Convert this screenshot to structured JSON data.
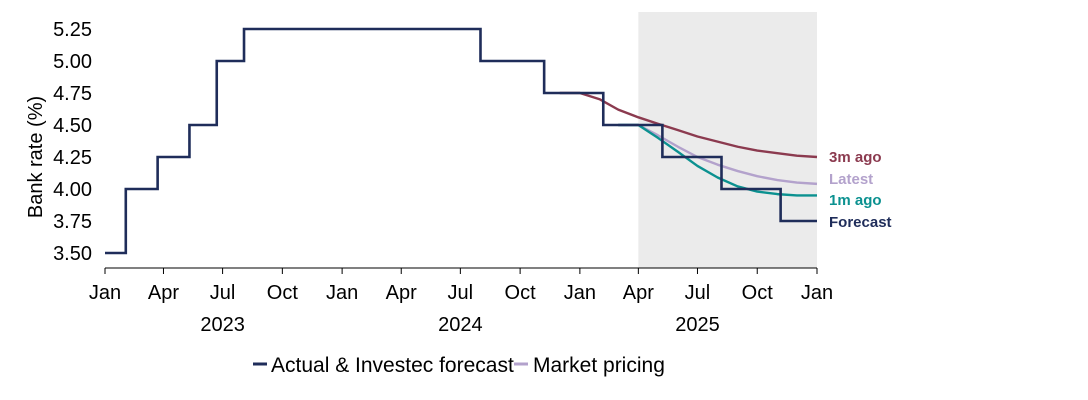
{
  "chart_data": {
    "type": "line",
    "ylabel": "Bank rate (%)",
    "xlabel": "",
    "title": "",
    "x_range": [
      "2023-01-01",
      "2026-01-01"
    ],
    "ylim": [
      3.5,
      5.25
    ],
    "y_ticks": [
      "3.50",
      "3.75",
      "4.00",
      "4.25",
      "4.50",
      "4.75",
      "5.00",
      "5.25"
    ],
    "x_ticks": [
      {
        "date": "2023-01-01",
        "label": "Jan"
      },
      {
        "date": "2023-04-01",
        "label": "Apr"
      },
      {
        "date": "2023-07-01",
        "label": "Jul"
      },
      {
        "date": "2023-10-01",
        "label": "Oct"
      },
      {
        "date": "2024-01-01",
        "label": "Jan"
      },
      {
        "date": "2024-04-01",
        "label": "Apr"
      },
      {
        "date": "2024-07-01",
        "label": "Jul"
      },
      {
        "date": "2024-10-01",
        "label": "Oct"
      },
      {
        "date": "2025-01-01",
        "label": "Jan"
      },
      {
        "date": "2025-04-01",
        "label": "Apr"
      },
      {
        "date": "2025-07-01",
        "label": "Jul"
      },
      {
        "date": "2025-10-01",
        "label": "Oct"
      },
      {
        "date": "2026-01-01",
        "label": "Jan"
      }
    ],
    "year_labels": [
      {
        "date": "2023-07-01",
        "label": "2023"
      },
      {
        "date": "2024-07-01",
        "label": "2024"
      },
      {
        "date": "2025-07-01",
        "label": "2025"
      }
    ],
    "shaded_region": {
      "from": "2025-04-01",
      "to": "2026-01-01"
    },
    "grid": false,
    "legend_position": "bottom",
    "legend": [
      {
        "label": "Actual & Investec forecast",
        "color": "#1f2d5a"
      },
      {
        "label": "Market pricing",
        "color": "#b3a2cc"
      }
    ],
    "series": [
      {
        "end_label": "Forecast",
        "color": "#1f2d5a",
        "step": true,
        "points": [
          [
            "2023-01-01",
            3.5
          ],
          [
            "2023-02-02",
            4.0
          ],
          [
            "2023-03-23",
            4.25
          ],
          [
            "2023-05-11",
            4.5
          ],
          [
            "2023-06-22",
            5.0
          ],
          [
            "2023-08-03",
            5.25
          ],
          [
            "2024-08-01",
            5.0
          ],
          [
            "2024-11-07",
            4.75
          ],
          [
            "2025-02-06",
            4.5
          ],
          [
            "2025-05-08",
            4.25
          ],
          [
            "2025-08-07",
            4.0
          ],
          [
            "2025-11-06",
            3.75
          ],
          [
            "2026-01-01",
            3.75
          ]
        ]
      },
      {
        "end_label": "3m ago",
        "color": "#8b3a4f",
        "step": false,
        "points": [
          [
            "2024-12-01",
            4.75
          ],
          [
            "2025-01-01",
            4.75
          ],
          [
            "2025-02-01",
            4.7
          ],
          [
            "2025-03-01",
            4.62
          ],
          [
            "2025-04-01",
            4.56
          ],
          [
            "2025-05-01",
            4.51
          ],
          [
            "2025-06-01",
            4.46
          ],
          [
            "2025-07-01",
            4.41
          ],
          [
            "2025-08-01",
            4.37
          ],
          [
            "2025-09-01",
            4.33
          ],
          [
            "2025-10-01",
            4.3
          ],
          [
            "2025-11-01",
            4.28
          ],
          [
            "2025-12-01",
            4.26
          ],
          [
            "2026-01-01",
            4.25
          ]
        ]
      },
      {
        "end_label": "Latest",
        "color": "#b3a2cc",
        "step": false,
        "points": [
          [
            "2025-03-01",
            4.5
          ],
          [
            "2025-04-01",
            4.5
          ],
          [
            "2025-05-01",
            4.42
          ],
          [
            "2025-06-01",
            4.33
          ],
          [
            "2025-07-01",
            4.25
          ],
          [
            "2025-08-01",
            4.19
          ],
          [
            "2025-09-01",
            4.14
          ],
          [
            "2025-10-01",
            4.1
          ],
          [
            "2025-11-01",
            4.07
          ],
          [
            "2025-12-01",
            4.05
          ],
          [
            "2026-01-01",
            4.04
          ]
        ]
      },
      {
        "end_label": "1m ago",
        "color": "#0b9190",
        "step": false,
        "points": [
          [
            "2025-03-01",
            4.5
          ],
          [
            "2025-04-01",
            4.5
          ],
          [
            "2025-05-01",
            4.4
          ],
          [
            "2025-06-01",
            4.29
          ],
          [
            "2025-07-01",
            4.18
          ],
          [
            "2025-08-01",
            4.09
          ],
          [
            "2025-09-01",
            4.02
          ],
          [
            "2025-10-01",
            3.98
          ],
          [
            "2025-11-01",
            3.96
          ],
          [
            "2025-12-01",
            3.95
          ],
          [
            "2026-01-01",
            3.95
          ]
        ]
      }
    ]
  }
}
